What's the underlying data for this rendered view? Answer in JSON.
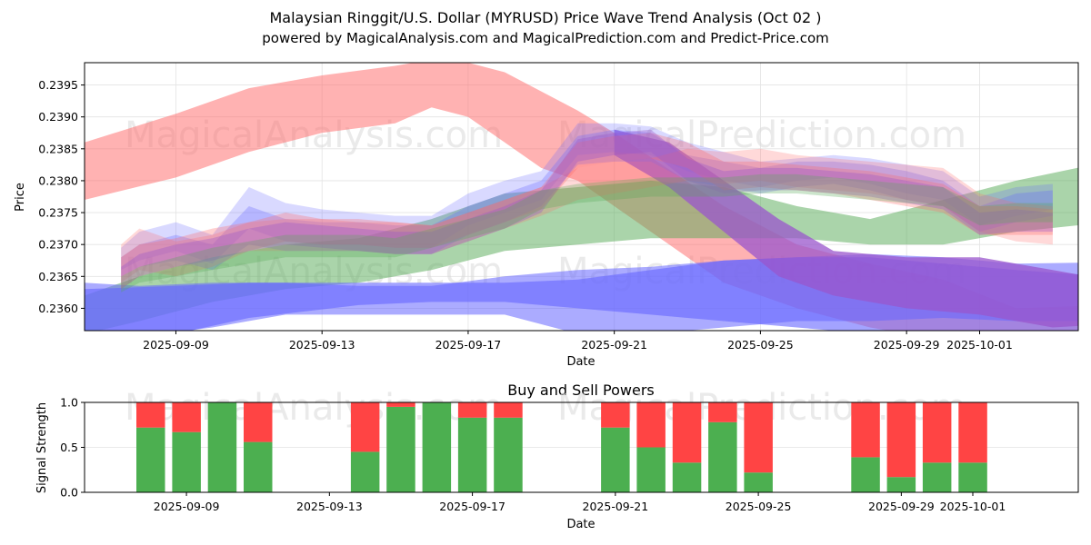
{
  "title_line1": "Malaysian Ringgit/U.S. Dollar (MYRUSD) Price Wave Trend Analysis (Oct 02 )",
  "title_line2": "powered by MagicalAnalysis.com and MagicalPrediction.com and Predict-Price.com",
  "watermarks": [
    "MagicalAnalysis.com",
    "MagicalPrediction.com"
  ],
  "colors": {
    "red": "#ff6666",
    "blue": "#6666ff",
    "green": "#55aa55",
    "purple": "#9955cc",
    "buy": "#4caf50",
    "sell": "#ff4444",
    "grid": "#e3e3e3"
  },
  "chart_data": [
    {
      "type": "area",
      "title": "",
      "xlabel": "Date",
      "ylabel": "Price",
      "xlim": [
        "2025-09-06.5",
        "2025-10-03.7"
      ],
      "ylim": [
        0.23565,
        0.23985
      ],
      "yticks": [
        0.236,
        0.2365,
        0.237,
        0.2375,
        0.238,
        0.2385,
        0.239,
        0.2395
      ],
      "ytick_labels": [
        "0.2360",
        "0.2365",
        "0.2370",
        "0.2375",
        "0.2380",
        "0.2385",
        "0.2390",
        "0.2395"
      ],
      "xticks": [
        "2025-09-09",
        "2025-09-13",
        "2025-09-17",
        "2025-09-21",
        "2025-09-25",
        "2025-09-29",
        "2025-10-01"
      ],
      "grid": true,
      "bands": [
        {
          "name": "red long wave",
          "color": "red",
          "opacity": 0.5,
          "x": [
            -1.5,
            1,
            3,
            5,
            7,
            8,
            9,
            10,
            11,
            12,
            13,
            16,
            18,
            20,
            22,
            24,
            26.5
          ],
          "upper": [
            0.2386,
            0.23905,
            0.23945,
            0.23965,
            0.2398,
            0.2399,
            0.23985,
            0.2397,
            0.2394,
            0.2391,
            0.23875,
            0.2376,
            0.237,
            0.2367,
            0.23645,
            0.236,
            0.23605
          ],
          "lower": [
            0.2377,
            0.23805,
            0.23845,
            0.23875,
            0.2389,
            0.23915,
            0.239,
            0.2386,
            0.2382,
            0.238,
            0.2376,
            0.2364,
            0.236,
            0.2357,
            0.2355,
            0.2353,
            0.2355
          ]
        },
        {
          "name": "green wave",
          "color": "green",
          "opacity": 0.5,
          "x": [
            -1.5,
            0,
            2,
            4,
            6,
            8,
            10,
            12,
            14,
            16,
            18,
            20,
            22,
            24,
            26.5
          ],
          "upper": [
            0.2362,
            0.2365,
            0.2368,
            0.237,
            0.2371,
            0.2374,
            0.2378,
            0.2379,
            0.238,
            0.2379,
            0.2376,
            0.2374,
            0.2377,
            0.238,
            0.2383
          ],
          "lower": [
            0.2356,
            0.2358,
            0.2361,
            0.2363,
            0.2364,
            0.2366,
            0.2369,
            0.237,
            0.2371,
            0.2371,
            0.2371,
            0.237,
            0.237,
            0.2372,
            0.23735
          ]
        },
        {
          "name": "blue long wave",
          "color": "blue",
          "opacity": 0.55,
          "x": [
            -1.5,
            0,
            2,
            4,
            6,
            8,
            10,
            12,
            14,
            16,
            18,
            20,
            22,
            24,
            26.5
          ],
          "upper": [
            0.2364,
            0.23635,
            0.2364,
            0.2364,
            0.23635,
            0.23635,
            0.2365,
            0.2366,
            0.23665,
            0.23675,
            0.2368,
            0.23685,
            0.2368,
            0.2367,
            0.23672
          ],
          "lower": [
            0.2356,
            0.23555,
            0.2357,
            0.2359,
            0.2359,
            0.2359,
            0.2359,
            0.2356,
            0.2356,
            0.2357,
            0.2358,
            0.2358,
            0.23585,
            0.2358,
            0.2358
          ]
        },
        {
          "name": "blue/purple bottom wave",
          "color": "blue",
          "opacity": 0.6,
          "x": [
            -1.5,
            1,
            3,
            6,
            8,
            10,
            12,
            14,
            16,
            18,
            20,
            22,
            24,
            26.5
          ],
          "upper": [
            0.2363,
            0.23635,
            0.2364,
            0.2364,
            0.2364,
            0.2364,
            0.23645,
            0.2366,
            0.23675,
            0.2368,
            0.2368,
            0.2367,
            0.2366,
            0.2365
          ],
          "lower": [
            0.2355,
            0.2356,
            0.23585,
            0.23605,
            0.2361,
            0.2361,
            0.236,
            0.2359,
            0.2358,
            0.2357,
            0.2356,
            0.2355,
            0.2355,
            0.2357
          ]
        },
        {
          "name": "purple descending wave",
          "color": "purple",
          "opacity": 0.75,
          "x": [
            13,
            14.5,
            16,
            17.5,
            19,
            21,
            23,
            25,
            26.5
          ],
          "upper": [
            0.2388,
            0.2386,
            0.238,
            0.2374,
            0.2369,
            0.2368,
            0.2368,
            0.2366,
            0.23645
          ],
          "lower": [
            0.2384,
            0.2379,
            0.2372,
            0.2365,
            0.2362,
            0.236,
            0.2359,
            0.2357,
            0.23575
          ]
        },
        {
          "name": "blue short wave A",
          "color": "blue",
          "opacity": 0.25,
          "x": [
            -0.5,
            0,
            1,
            2,
            3,
            4,
            5,
            6,
            7,
            8,
            9,
            10,
            11,
            12,
            13,
            14,
            15,
            16,
            17,
            18,
            19,
            20,
            21,
            22,
            23,
            24,
            25
          ],
          "upper": [
            0.23695,
            0.2372,
            0.23735,
            0.23715,
            0.2379,
            0.23765,
            0.23755,
            0.2375,
            0.23745,
            0.23745,
            0.2378,
            0.238,
            0.23815,
            0.2389,
            0.2389,
            0.23885,
            0.2386,
            0.23845,
            0.2383,
            0.23835,
            0.2384,
            0.23835,
            0.23825,
            0.23815,
            0.23775,
            0.2379,
            0.23795
          ],
          "lower": [
            0.2366,
            0.23675,
            0.2369,
            0.2367,
            0.23725,
            0.23705,
            0.237,
            0.237,
            0.23695,
            0.23695,
            0.2373,
            0.2375,
            0.2377,
            0.2384,
            0.23845,
            0.2384,
            0.23815,
            0.238,
            0.2379,
            0.238,
            0.23805,
            0.23795,
            0.2378,
            0.2377,
            0.2373,
            0.23745,
            0.23755
          ]
        },
        {
          "name": "blue short wave B",
          "color": "blue",
          "opacity": 0.3,
          "x": [
            -0.5,
            0,
            1,
            2,
            3,
            4,
            5,
            6,
            7,
            8,
            9,
            10,
            11,
            12,
            13,
            14,
            15,
            16,
            17,
            18,
            19,
            20,
            21,
            22,
            23,
            24,
            25
          ],
          "upper": [
            0.2368,
            0.237,
            0.23715,
            0.237,
            0.2376,
            0.2374,
            0.23735,
            0.23735,
            0.2373,
            0.2373,
            0.2376,
            0.2378,
            0.238,
            0.2387,
            0.2388,
            0.23875,
            0.2384,
            0.2383,
            0.2382,
            0.2383,
            0.2383,
            0.23825,
            0.23815,
            0.238,
            0.2376,
            0.2378,
            0.23785
          ],
          "lower": [
            0.2365,
            0.23665,
            0.23675,
            0.2366,
            0.237,
            0.2369,
            0.2369,
            0.2369,
            0.23685,
            0.23685,
            0.23715,
            0.23735,
            0.2376,
            0.23825,
            0.2383,
            0.2383,
            0.238,
            0.2379,
            0.2378,
            0.2379,
            0.23795,
            0.23785,
            0.2377,
            0.2376,
            0.2372,
            0.23735,
            0.23745
          ]
        },
        {
          "name": "red short wave A",
          "color": "red",
          "opacity": 0.25,
          "x": [
            -0.5,
            0,
            1,
            2,
            3,
            4,
            5,
            6,
            7,
            8,
            9,
            10,
            11,
            12,
            13,
            14,
            15,
            16,
            17,
            18,
            19,
            20,
            21,
            22,
            23,
            24,
            25
          ],
          "upper": [
            0.237,
            0.23725,
            0.23705,
            0.23715,
            0.23735,
            0.2374,
            0.2374,
            0.23735,
            0.23735,
            0.2373,
            0.2375,
            0.2377,
            0.2379,
            0.2382,
            0.2383,
            0.23835,
            0.2385,
            0.23845,
            0.2385,
            0.2384,
            0.23835,
            0.2383,
            0.23825,
            0.2382,
            0.2378,
            0.23765,
            0.2376
          ],
          "lower": [
            0.2364,
            0.2366,
            0.2365,
            0.23665,
            0.2369,
            0.2369,
            0.2369,
            0.2369,
            0.23685,
            0.23685,
            0.23705,
            0.23725,
            0.23745,
            0.2377,
            0.2378,
            0.2379,
            0.238,
            0.23795,
            0.238,
            0.2379,
            0.23785,
            0.2378,
            0.2377,
            0.2376,
            0.2372,
            0.23705,
            0.237
          ]
        },
        {
          "name": "red short wave B",
          "color": "red",
          "opacity": 0.3,
          "x": [
            -0.5,
            0,
            1,
            2,
            3,
            4,
            5,
            6,
            7,
            8,
            9,
            10,
            11,
            12,
            13,
            14,
            15,
            16,
            17,
            18,
            19,
            20,
            21,
            22,
            23,
            24,
            25
          ],
          "upper": [
            0.2368,
            0.237,
            0.2371,
            0.23725,
            0.23735,
            0.2375,
            0.2374,
            0.2374,
            0.23735,
            0.2373,
            0.2375,
            0.2377,
            0.2379,
            0.2386,
            0.2387,
            0.23875,
            0.2386,
            0.2383,
            0.2383,
            0.23825,
            0.2382,
            0.23815,
            0.23805,
            0.23795,
            0.2376,
            0.2376,
            0.23755
          ],
          "lower": [
            0.2363,
            0.2365,
            0.23665,
            0.2368,
            0.2369,
            0.23705,
            0.237,
            0.237,
            0.23695,
            0.23695,
            0.23715,
            0.23735,
            0.23755,
            0.2382,
            0.2383,
            0.23835,
            0.2382,
            0.23785,
            0.2379,
            0.23785,
            0.2378,
            0.2377,
            0.2376,
            0.2375,
            0.23715,
            0.23715,
            0.23715
          ]
        },
        {
          "name": "mixed short wave",
          "color": "purple",
          "opacity": 0.35,
          "x": [
            -0.5,
            0,
            1,
            2,
            3,
            4,
            5,
            6,
            7,
            8,
            9,
            10,
            11,
            12,
            13,
            14,
            15,
            16,
            17,
            18,
            19,
            20,
            21,
            22,
            23,
            24,
            25
          ],
          "upper": [
            0.23665,
            0.23685,
            0.237,
            0.2371,
            0.23725,
            0.23735,
            0.2373,
            0.23725,
            0.2372,
            0.2372,
            0.2374,
            0.2376,
            0.23785,
            0.23865,
            0.23875,
            0.2388,
            0.23835,
            0.23815,
            0.2382,
            0.2382,
            0.23815,
            0.2381,
            0.238,
            0.2379,
            0.2375,
            0.23755,
            0.2375
          ],
          "lower": [
            0.2363,
            0.2365,
            0.23665,
            0.23675,
            0.2369,
            0.237,
            0.23695,
            0.2369,
            0.23685,
            0.23685,
            0.23705,
            0.23725,
            0.2375,
            0.2383,
            0.2384,
            0.23845,
            0.238,
            0.2378,
            0.23785,
            0.23785,
            0.2378,
            0.23775,
            0.23765,
            0.23755,
            0.23715,
            0.2372,
            0.2372
          ]
        },
        {
          "name": "olive short wave",
          "color": "green",
          "opacity": 0.3,
          "x": [
            -0.5,
            0,
            1,
            2,
            3,
            4,
            5,
            6,
            7,
            8,
            9,
            10,
            11,
            12,
            13,
            14,
            15,
            16,
            17,
            18,
            19,
            20,
            21,
            22,
            23,
            24,
            25
          ],
          "upper": [
            0.2365,
            0.23665,
            0.2368,
            0.23695,
            0.23705,
            0.23715,
            0.23715,
            0.23715,
            0.2371,
            0.23725,
            0.2374,
            0.23755,
            0.23785,
            0.23795,
            0.238,
            0.23805,
            0.23805,
            0.23805,
            0.2381,
            0.2381,
            0.23805,
            0.238,
            0.23795,
            0.2379,
            0.2376,
            0.23765,
            0.23765
          ],
          "lower": [
            0.23625,
            0.2364,
            0.2365,
            0.2366,
            0.2367,
            0.2368,
            0.2368,
            0.2368,
            0.2368,
            0.23695,
            0.2371,
            0.23725,
            0.23755,
            0.23765,
            0.2377,
            0.23775,
            0.23775,
            0.23775,
            0.2378,
            0.2378,
            0.23775,
            0.2377,
            0.23765,
            0.2376,
            0.2373,
            0.23735,
            0.23735
          ]
        }
      ]
    },
    {
      "type": "bar",
      "title": "Buy and Sell Powers",
      "xlabel": "Date",
      "ylabel": "Signal Strength",
      "ylim": [
        0,
        1.0
      ],
      "yticks": [
        0.0,
        0.5,
        1.0
      ],
      "ytick_labels": [
        "0.0",
        "0.5",
        "1.0"
      ],
      "xticks": [
        "2025-09-09",
        "2025-09-13",
        "2025-09-17",
        "2025-09-21",
        "2025-09-25",
        "2025-09-29",
        "2025-10-01"
      ],
      "categories": [
        "2025-09-08",
        "2025-09-09",
        "2025-09-10",
        "2025-09-11",
        "2025-09-14",
        "2025-09-15",
        "2025-09-16",
        "2025-09-17",
        "2025-09-18",
        "2025-09-21",
        "2025-09-22",
        "2025-09-23",
        "2025-09-24",
        "2025-09-25",
        "2025-09-28",
        "2025-09-29",
        "2025-09-30",
        "2025-10-01"
      ],
      "series": [
        {
          "name": "Buy",
          "color": "buy",
          "values": [
            0.72,
            0.67,
            1.0,
            0.56,
            0.45,
            0.95,
            1.0,
            0.83,
            0.83,
            0.72,
            0.5,
            0.33,
            0.78,
            0.22,
            0.39,
            0.17,
            0.33,
            0.33
          ]
        },
        {
          "name": "Sell",
          "color": "sell",
          "values": [
            0.28,
            0.33,
            0.0,
            0.44,
            0.55,
            0.05,
            0.0,
            0.17,
            0.17,
            0.28,
            0.5,
            0.67,
            0.22,
            0.78,
            0.61,
            0.83,
            0.67,
            0.67
          ]
        }
      ]
    }
  ]
}
